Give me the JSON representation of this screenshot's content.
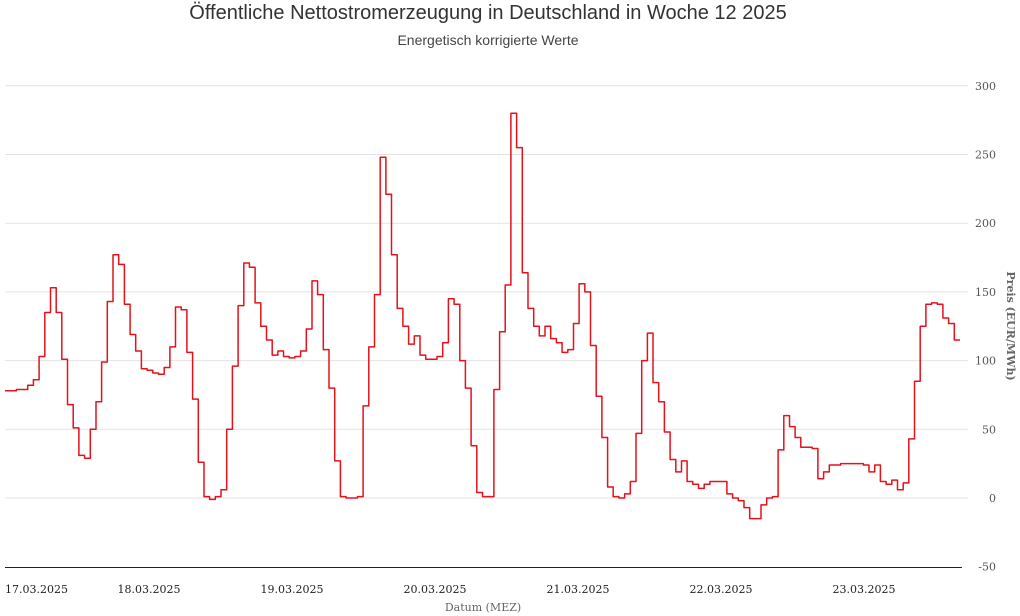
{
  "chart_data": {
    "type": "line",
    "title": "Öffentliche Nettostromerzeugung in Deutschland in Woche 12 2025",
    "subtitle": "Energetisch korrigierte Werte",
    "xlabel": "Datum (MEZ)",
    "ylabel": "Preis (EUR/MWh)",
    "ylim": [
      -50,
      300
    ],
    "yticks": [
      "300",
      "250",
      "200",
      "150",
      "100",
      "50",
      "0",
      "-50"
    ],
    "ytick_values": [
      300,
      250,
      200,
      150,
      100,
      50,
      0,
      -50
    ],
    "xtick_labels": [
      "17.03.2025",
      "18.03.2025",
      "19.03.2025",
      "20.03.2025",
      "21.03.2025",
      "22.03.2025",
      "23.03.2025"
    ],
    "grid": true,
    "line_color": "#e3121b",
    "series": [
      {
        "name": "Preis",
        "interval": "hourly",
        "values": [
          78,
          78,
          79,
          79,
          82,
          86,
          103,
          135,
          153,
          135,
          101,
          68,
          51,
          31,
          29,
          50,
          70,
          99,
          143,
          177,
          170,
          141,
          119,
          107,
          94,
          93,
          91,
          90,
          95,
          110,
          139,
          137,
          106,
          72,
          26,
          1,
          -1,
          1,
          6,
          50,
          96,
          140,
          171,
          168,
          142,
          125,
          115,
          104,
          107,
          103,
          102,
          103,
          107,
          123,
          158,
          148,
          108,
          80,
          27,
          1,
          0,
          0,
          1,
          67,
          110,
          148,
          248,
          221,
          177,
          138,
          125,
          112,
          118,
          104,
          101,
          101,
          103,
          113,
          145,
          141,
          100,
          80,
          38,
          4,
          1,
          1,
          79,
          121,
          155,
          280,
          255,
          164,
          138,
          125,
          118,
          125,
          116,
          113,
          106,
          108,
          127,
          156,
          150,
          111,
          74,
          44,
          8,
          1,
          0,
          3,
          12,
          47,
          100,
          120,
          84,
          70,
          48,
          28,
          19,
          27,
          12,
          10,
          7,
          10,
          12,
          12,
          12,
          3,
          0,
          -2,
          -7,
          -15,
          -15,
          -5,
          0,
          1,
          35,
          60,
          52,
          44,
          37,
          37,
          36,
          14,
          19,
          24,
          24,
          25,
          25,
          25,
          25,
          24,
          19,
          24,
          12,
          10,
          13,
          6,
          11,
          43,
          85,
          125,
          141,
          142,
          141,
          131,
          127,
          115
        ]
      }
    ]
  }
}
